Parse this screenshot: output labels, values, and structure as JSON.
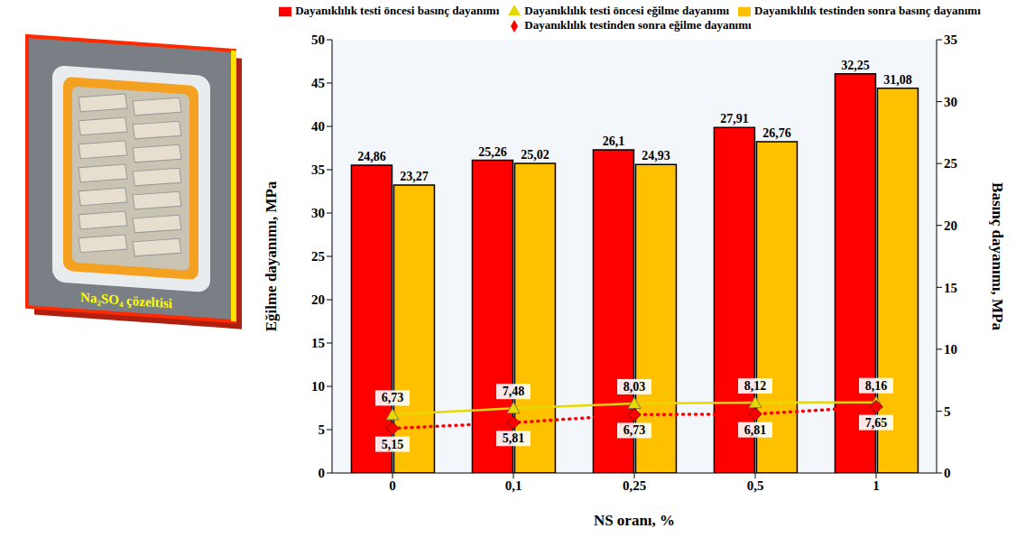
{
  "chart_data": {
    "type": "bar",
    "x_label": "NS oranı, %",
    "y_label": "Eğilme dayanımı, MPa",
    "y2_label": "Basınç dayanımı, MPa",
    "annotations": [
      "Na₂SO₄ çözeltisi"
    ],
    "categories": [
      "0",
      "0,1",
      "0,25",
      "0,5",
      "1"
    ],
    "ylim": [
      0,
      50
    ],
    "yticks": [
      0,
      5,
      10,
      15,
      20,
      25,
      30,
      35,
      40,
      45,
      50
    ],
    "y2lim": [
      0,
      35
    ],
    "y2ticks": [
      0,
      5,
      10,
      15,
      20,
      25,
      30,
      35
    ],
    "grid": false,
    "legend": "top",
    "data_labels": true,
    "series": [
      {
        "name": "Dayanıklılık testi öncesi basınç dayanımı",
        "type": "bar",
        "axis": "y2",
        "color": "#ff0000",
        "values": [
          24.86,
          25.26,
          26.1,
          27.91,
          32.25
        ],
        "value_labels": [
          "24,86",
          "25,26",
          "26,1",
          "27,91",
          "32,25"
        ]
      },
      {
        "name": "Dayanıklılık testinden sonra basınç dayanımı",
        "type": "bar",
        "axis": "y2",
        "color": "#ffc000",
        "values": [
          23.27,
          25.02,
          24.93,
          26.76,
          31.08
        ],
        "value_labels": [
          "23,27",
          "25,02",
          "24,93",
          "26,76",
          "31,08"
        ]
      },
      {
        "name": "Dayanıklılık testi öncesi eğilme dayanımı",
        "type": "line",
        "axis": "y",
        "color": "#e6d800",
        "marker": "triangle",
        "line_style": "solid",
        "values": [
          6.73,
          7.48,
          8.03,
          8.12,
          8.16
        ],
        "value_labels": [
          "6,73",
          "7,48",
          "8,03",
          "8,12",
          "8,16"
        ]
      },
      {
        "name": "Dayanıklılık testinden sonra eğilme dayanımı",
        "type": "line",
        "axis": "y",
        "color": "#ff0000",
        "marker": "diamond",
        "line_style": "dotted",
        "values": [
          5.15,
          5.81,
          6.73,
          6.81,
          7.65
        ],
        "value_labels": [
          "5,15",
          "5,81",
          "6,73",
          "6,81",
          "7,65"
        ]
      }
    ]
  }
}
